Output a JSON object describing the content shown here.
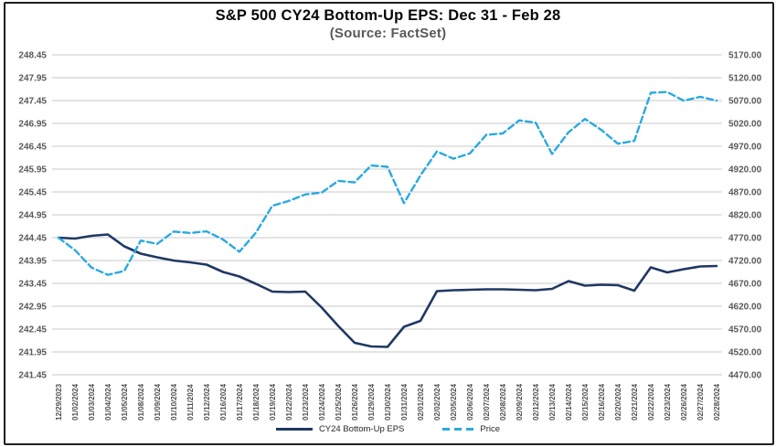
{
  "header": {
    "title": "S&P 500 CY24 Bottom-Up EPS: Dec 31 - Feb 28",
    "subtitle": "(Source: FactSet)"
  },
  "legend": {
    "eps_label": "CY24 Bottom-Up EPS",
    "price_label": "Price"
  },
  "colors": {
    "eps_line": "#1f3864",
    "price_line": "#2aa9e0",
    "gridline": "#c9c9c9",
    "axis_label": "#595959",
    "date_label": "#4d4d4d"
  },
  "chart_data": {
    "type": "line",
    "title": "S&P 500 CY24 Bottom-Up EPS: Dec 31 - Feb 28",
    "subtitle": "(Source: FactSet)",
    "grid": true,
    "legend_position": "bottom",
    "categories": [
      "12/29/2023",
      "01/02/2024",
      "01/03/2024",
      "01/04/2024",
      "01/05/2024",
      "01/08/2024",
      "01/09/2024",
      "01/10/2024",
      "01/11/2024",
      "01/12/2024",
      "01/16/2024",
      "01/17/2024",
      "01/18/2024",
      "01/19/2024",
      "01/22/2024",
      "01/23/2024",
      "01/24/2024",
      "01/25/2024",
      "01/26/2024",
      "01/29/2024",
      "01/30/2024",
      "01/31/2024",
      "02/01/2024",
      "02/02/2024",
      "02/05/2024",
      "02/06/2024",
      "02/07/2024",
      "02/08/2024",
      "02/09/2024",
      "02/12/2024",
      "02/13/2024",
      "02/14/2024",
      "02/15/2024",
      "02/16/2024",
      "02/20/2024",
      "02/21/2024",
      "02/22/2024",
      "02/23/2024",
      "02/26/2024",
      "02/27/2024",
      "02/28/2024"
    ],
    "series": [
      {
        "name": "CY24 Bottom-Up EPS",
        "axis": "left",
        "style": "solid",
        "color": "#1f3864",
        "width": 2.6,
        "values": [
          244.45,
          244.43,
          244.49,
          244.52,
          244.26,
          244.1,
          244.02,
          243.95,
          243.91,
          243.86,
          243.7,
          243.6,
          243.44,
          243.27,
          243.26,
          243.27,
          242.92,
          242.52,
          242.15,
          242.07,
          242.06,
          242.5,
          242.63,
          243.28,
          243.3,
          243.31,
          243.32,
          243.32,
          243.31,
          243.3,
          243.33,
          243.5,
          243.4,
          243.42,
          243.41,
          243.29,
          243.8,
          243.69,
          243.76,
          243.82,
          243.83
        ]
      },
      {
        "name": "Price",
        "axis": "right",
        "style": "dashed",
        "color": "#2aa9e0",
        "width": 2.4,
        "values": [
          4769.83,
          4742.83,
          4704.81,
          4688.68,
          4697.24,
          4763.54,
          4756.5,
          4783.45,
          4780.24,
          4783.83,
          4765.98,
          4739.21,
          4780.94,
          4839.81,
          4850.43,
          4864.6,
          4868.55,
          4894.16,
          4890.97,
          4927.93,
          4924.97,
          4845.65,
          4906.19,
          4958.61,
          4942.81,
          4954.23,
          4995.06,
          4997.91,
          5026.61,
          5021.84,
          4953.17,
          5000.62,
          5029.73,
          5005.57,
          4975.51,
          4981.8,
          5087.03,
          5088.8,
          5069.53,
          5078.18,
          5069.76
        ]
      }
    ],
    "left_axis": {
      "min": 241.45,
      "max": 248.45,
      "tick_step": 0.5,
      "ticks": [
        "248.45",
        "247.95",
        "247.45",
        "246.95",
        "246.45",
        "245.95",
        "245.45",
        "244.95",
        "244.45",
        "243.95",
        "243.45",
        "242.95",
        "242.45",
        "241.95",
        "241.45"
      ]
    },
    "right_axis": {
      "min": 4470,
      "max": 5170,
      "tick_step": 50,
      "ticks": [
        "5170.00",
        "5120.00",
        "5070.00",
        "5020.00",
        "4970.00",
        "4920.00",
        "4870.00",
        "4820.00",
        "4770.00",
        "4720.00",
        "4670.00",
        "4620.00",
        "4570.00",
        "4520.00",
        "4470.00"
      ]
    }
  }
}
